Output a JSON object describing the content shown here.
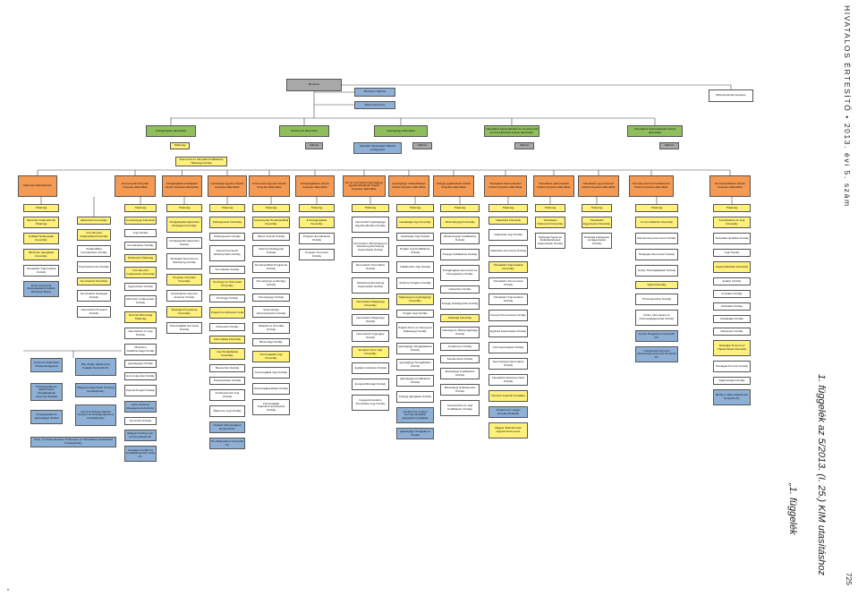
{
  "top": {
    "minister": "Miniszter",
    "minister_cabinet": "Miniszteri Kabinet",
    "internal_audit": "Belső ellenőrzés",
    "iktato": "Iktatóiroda",
    "kabinetfonok": "Kabinetfőnök",
    "titkarsag": "Titkárság",
    "right_deputy": "Miniszterelnök-helyettes"
  },
  "state_secretaries": [
    "Közigazgatási államtitkár",
    "Parlamenti államtitkár",
    "Igazságügyi államtitkár",
    "Társadalmi kapcsolatokért és Kormányzati kommunikációért felelős államtitkár",
    "Társadalmi Kapcsolatokért felelős államtitkár"
  ],
  "sub_row": {
    "titkarsag": "Titkárság",
    "kabinet": "Kabinet",
    "spec": "Speciális Tanácsadói Hálózat (felügyelet)",
    "szervezeti": "Szervezeti és Irányítási Kodifikációs Titkárság Osztály"
  },
  "deputies": [
    "Miniszteri kabinetfőnök",
    "Kormányzati irányítási helyettes államtitkár",
    "Közigazgatási stratégiáért felelős helyettes államtitkár",
    "Gazdasági ügyekért felelős helyettes államtitkár",
    "Szervezési ügyekért felelős helyettes államtitkár",
    "Közigazgatásért felelős helyettes államtitkár",
    "EU és nemzetközi igazságügyi együttműködésért felelős helyettes államtitkár",
    "Igazságügyi szakpolitikáért felelős helyettes államtitkár",
    "Közjogi jogalkotásért felelős helyettes államtitkár",
    "Társadalmi kapcsolatokért felelős helyettes államtitkár",
    "Társadalmi párbeszédért felelős helyettes államtitkár",
    "Társadalmi egyeztetésért felelős helyettes államtitkár",
    "Kormányzati kommunikációért felelős helyettes államtitkár",
    "Nemzetpolitikáért felelős helyettes államtitkár"
  ],
  "columns": [
    [
      "Titkárság",
      "Miniszteri Kabinetfőnök Titkárság",
      "Politikai Tanácsadók Főosztály",
      "Miniszteri Igazgatási Főosztály",
      "Társadalmi Kapcsolatok Osztály",
      "Zsidó Közösségi Kapcsolatokért Felelős Miniszteri Biztos"
    ],
    [
      "Ellenőrzési Főosztály",
      "Kormányzati Szakpolitikai Főosztály",
      "Szakpolitikai Koordinációs Osztály",
      "Helyzetelemzési Osztály",
      "Nemzetközi Főosztály",
      "Nemzetközi Stratégiai Osztály",
      "Nemzetközi Protokoll Osztály"
    ],
    [
      "Titkárság",
      "Kormányügyi Főosztály",
      "Jogi Osztály",
      "Koordinációs Osztály",
      "Parlamenti Titkárság",
      "Kormányzati Irodavezetés Főosztály",
      "Ügykezelési Osztály",
      "Miniszteri Irodavezetés Osztály",
      "Nemzeti Biztonsági Titkárság",
      "Nemzetközi és Jogi Osztály",
      "Miniszteri Adatbiztonsági Osztály",
      "Igazságügyi Osztály",
      "E-Kormányzati Osztály",
      "Kiemelt Projekt Osztály",
      "Cyber Defence Management Authority",
      "Tervezési Osztály",
      "Magyar Közlöny Lap- és Könyvkiadó Kft.",
      "Országos Fordító és Fordításhitelesítő Iroda Zrt."
    ],
    [
      "Titkárság",
      "Közigazgatás-fejlesztési Stratégiai Főosztály",
      "Közigazgatás-fejlesztési Osztály",
      "Stratégiai Tervezési és Monitoring Osztály",
      "Program-irányítási Főosztály",
      "Koordinációs Nyomon követési Osztály",
      "Stratégiai Programok Főosztály",
      "Közszolgálati Tervezési Osztály"
    ],
    [
      "Titkárság",
      "Költségvetési Főosztály",
      "Költségvetési Osztály",
      "Fejezeti Kezelésű Előirányzatok Osztály",
      "Fenntartási Osztály",
      "Pénzügyi és Számviteli Főosztály",
      "Pénzügyi Osztály",
      "Projekt Koordinációs Iroda",
      "Számviteli Osztály",
      "Informatikai Főosztály",
      "Jogi Szolgáltatási Főosztály",
      "Beszerzési Osztály",
      "Perképviseleti Osztály",
      "Közbeszerzési Jogi Osztály",
      "Állatorvos Jogi Osztály",
      "Szabad Állampolgárok Nonprofit Kft.",
      "Pro Rekreatione Nonprofit Kft."
    ],
    [
      "Titkárság",
      "Kormányzati Humánpolitikai Főosztály",
      "Állami Vezetői Osztály",
      "Intézményfelügyeleti Osztály",
      "Humánpolitikai Programok Osztály",
      "Személyügyi és Bérügyi Osztály",
      "Személyügyi Osztály",
      "Személyügyi Adminisztrációs Osztály",
      "Oktatási és Szociális Osztály",
      "Biztonsági Osztály",
      "Közszolgálati Jogi Főosztály",
      "Közszolgálati Jogi Osztály",
      "Közszolgálati Etikai Osztály",
      "Közszolgálati Teljesítményértékelési Osztály"
    ],
    [
      "Titkárság",
      "E-Közigazgatási Főosztály",
      "Program-koordinációs Osztály",
      "Program Tervezési Osztály"
    ],
    [
      "Titkárság",
      "Nemzetközi Igazságügyi Együttműködési Osztály",
      "Nemzetközi, Büntetőjogi és Strasbourgi Emberjogi Kapcsolatok Osztály",
      "Nemzetközi Szerződési Osztály",
      "Strasbourgi Emberjogi Kapcsolatok Osztály",
      "Nemzetközi Magánjogi Főosztály",
      "Nemzetközi Magánjogi Osztály",
      "Nemzetközi Jogsegély Osztály",
      "Európai Uniós Jogi Főosztály",
      "Jogharmonizációs Osztály",
      "Európai Bírósági Osztály",
      "Fogyasztóvédelmi Szerződési Jogi Osztály"
    ],
    [
      "Titkárság",
      "Gazdasági Jogi Főosztály",
      "Gazdasági Jogi Osztály",
      "Polgári Jogi Kodifikációs Osztály",
      "Vállalkozási Jogi Osztály",
      "Szellemi Tulajdon Osztály",
      "Magánjogi és Igazságügyi Főosztály",
      "Polgári Jogi Osztály",
      "Polgári Peres és Nemperes Eljárásjogi Osztály",
      "Igazságügyi Szolgáltatások Osztály",
      "Igazságügyi Szolgáltatási Osztály",
      "Igazságügyi Kodifikációs Osztály",
      "Közjogi Igazgatási Osztály",
      "Fővárosi és megyei kormányhivatalok igazgatási szolgálata",
      "Igazságügyi Szolgálat és Hivatal"
    ],
    [
      "Titkárság",
      "Alkotmányjogi Főosztály",
      "Alkotmányjogi Kodifikációs Osztály",
      "Közjogi Kodifikációs Osztály",
      "Közigazgatás-szervezési és Deregulációs Osztály",
      "Választási Osztály",
      "Közjogi Szabályozási Osztály",
      "Hatósági Főosztály",
      "Hatósági és Állampolgársági Osztály",
      "Anyakönyvi Osztály",
      "Szerkesztési Osztály",
      "Büntetőjogi Kodifikációs Osztály",
      "Büntetőjogi Szabályozási Osztály",
      "Szerkesztési és Jogi Kodifikációs Osztály"
    ],
    [
      "Titkárság",
      "Választási Főosztály",
      "Választási Jogi Osztály",
      "Választás-szervezési Osztály",
      "Társadalmi Kapcsolatok Főosztály",
      "Társadalmi Szervezetek Osztály",
      "Társadalmi Kapcsolatok Osztály",
      "Kiemelt Szervezetek Osztály",
      "Egyházi Kapcsolatok Osztály",
      "Civil Kapcsolatok Osztály",
      "Nemzetiségi Kapcsolatok Osztály",
      "Társadalmi Esélyteremtési Osztály",
      "Nemzeti Jogvédő Szolgálat",
      "Fővárosi és megyei kormányhivatalok",
      "Magyar Államkincstár Jogutód Szervezete"
    ],
    [
      "Titkárság",
      "Társadalmi Párbeszéd Főosztály",
      "Hatósági Ügyek és Érdekképviseleti Kapcsolatok Osztály"
    ],
    [
      "Titkárság",
      "Társadalmi Egyeztetési Főosztály",
      "Hatósági Felügyeleti és Egyeztetési Osztály"
    ],
    [
      "Titkárság",
      "Kommunikációs Főosztály",
      "Rendezvényszervezési Osztály",
      "Stratégiai Szervezési Osztály",
      "Online Hírszolgáltatási Osztály",
      "Sajtó Főosztály",
      "Hírszerkesztési Osztály",
      "Online Információs és Közönségkapcsolati Osztály",
      "Forum Hungaricum Nonprofit Kft.",
      "Hungarofest Nemzeti Rendezvényszervező Nonprofit Kft."
    ],
    [
      "Titkárság",
      "Koordinációs és Jogi Főosztály",
      "Társadalompolitikai Osztály",
      "Jogi Osztály",
      "Kapcsolattartási Főosztály",
      "Erdélyi Osztály",
      "Felvidéki Osztály",
      "Délvidéki Osztály",
      "Kárpátaljai Osztály",
      "Diaszpóra Osztály",
      "Stratégiai Tervező és Tájékoztatási Főosztály",
      "Stratégiai Tervező Osztály",
      "Tájékoztatási Osztály",
      "Bethlen Gábor Alapkezelő Nonprofit Zrt."
    ]
  ],
  "left_group": [
    "Központi Statisztikai Hivatal (felügyelet)",
    "Bay Zoltán Alkalmazott Kutatási Nonprofit Kft.",
    "Közigazgatási és Elektronikus Szolgáltatások Központi Hivatala",
    "Magyarországi Zsidó Örökség Közalapítvány",
    "Közigazgatási és Igazságügyi Hivatal",
    "Nemzeti Dokumentációs Központ és Emlékgyűjtemény Közalapítvány",
    "Kelet- és Közép-Európai Történelem és Társadalom Kutatásáért Közalapítvány"
  ],
  "side": {
    "header": "HIVATALOS ÉRTESÍTŐ • 2013. évi 5. szám",
    "page": "725",
    "annex1": "1. függelék az 5/2013. (I. 25.) KIM utasításhoz",
    "annex2": "„1. függelék",
    "corner": "„"
  }
}
